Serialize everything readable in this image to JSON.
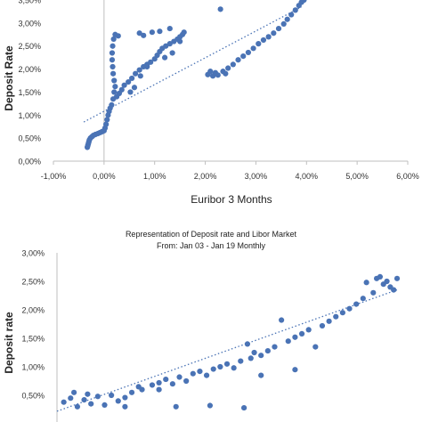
{
  "chart_data": [
    {
      "type": "scatter",
      "title": "",
      "xlabel": "Euribor 3 Months",
      "ylabel": "Deposit Rate",
      "xlim": [
        -1.0,
        6.0
      ],
      "ylim": [
        0.0,
        3.5
      ],
      "x_ticks": [
        -1,
        0,
        1,
        2,
        3,
        4,
        5,
        6
      ],
      "x_tick_labels": [
        "-1,00%",
        "0,00%",
        "1,00%",
        "2,00%",
        "3,00%",
        "4,00%",
        "5,00%",
        "6,00%"
      ],
      "y_ticks": [
        0,
        0.5,
        1,
        1.5,
        2,
        2.5,
        3,
        3.5
      ],
      "y_tick_labels": [
        "0,00%",
        "0,50%",
        "1,00%",
        "1,50%",
        "2,00%",
        "2,50%",
        "3,00%",
        "3,50%"
      ],
      "grid": false,
      "trendline": {
        "style": "dotted",
        "x": [
          -0.4,
          3.9
        ],
        "y": [
          0.85,
          3.35
        ]
      },
      "points": [
        {
          "x": -0.33,
          "y": 0.3
        },
        {
          "x": -0.32,
          "y": 0.34
        },
        {
          "x": -0.31,
          "y": 0.38
        },
        {
          "x": -0.3,
          "y": 0.42
        },
        {
          "x": -0.29,
          "y": 0.46
        },
        {
          "x": -0.27,
          "y": 0.5
        },
        {
          "x": -0.24,
          "y": 0.53
        },
        {
          "x": -0.21,
          "y": 0.56
        },
        {
          "x": -0.17,
          "y": 0.58
        },
        {
          "x": -0.12,
          "y": 0.6
        },
        {
          "x": -0.08,
          "y": 0.62
        },
        {
          "x": -0.04,
          "y": 0.64
        },
        {
          "x": 0.0,
          "y": 0.66
        },
        {
          "x": 0.02,
          "y": 0.72
        },
        {
          "x": 0.04,
          "y": 0.8
        },
        {
          "x": 0.06,
          "y": 0.9
        },
        {
          "x": 0.08,
          "y": 1.0
        },
        {
          "x": 0.1,
          "y": 1.08
        },
        {
          "x": 0.12,
          "y": 1.15
        },
        {
          "x": 0.15,
          "y": 1.22
        },
        {
          "x": 0.18,
          "y": 1.35
        },
        {
          "x": 0.2,
          "y": 1.5
        },
        {
          "x": 0.22,
          "y": 1.62
        },
        {
          "x": 0.2,
          "y": 1.75
        },
        {
          "x": 0.18,
          "y": 1.9
        },
        {
          "x": 0.17,
          "y": 2.05
        },
        {
          "x": 0.16,
          "y": 2.2
        },
        {
          "x": 0.16,
          "y": 2.35
        },
        {
          "x": 0.17,
          "y": 2.5
        },
        {
          "x": 0.19,
          "y": 2.65
        },
        {
          "x": 0.22,
          "y": 2.75
        },
        {
          "x": 0.28,
          "y": 2.72
        },
        {
          "x": 0.25,
          "y": 1.4
        },
        {
          "x": 0.3,
          "y": 1.47
        },
        {
          "x": 0.35,
          "y": 1.55
        },
        {
          "x": 0.4,
          "y": 1.65
        },
        {
          "x": 0.48,
          "y": 1.72
        },
        {
          "x": 0.55,
          "y": 1.8
        },
        {
          "x": 0.62,
          "y": 1.9
        },
        {
          "x": 0.7,
          "y": 1.98
        },
        {
          "x": 0.78,
          "y": 2.05
        },
        {
          "x": 0.85,
          "y": 2.1
        },
        {
          "x": 0.92,
          "y": 2.15
        },
        {
          "x": 1.0,
          "y": 2.22
        },
        {
          "x": 1.05,
          "y": 2.3
        },
        {
          "x": 1.1,
          "y": 2.38
        },
        {
          "x": 1.15,
          "y": 2.45
        },
        {
          "x": 1.22,
          "y": 2.5
        },
        {
          "x": 1.3,
          "y": 2.55
        },
        {
          "x": 1.38,
          "y": 2.6
        },
        {
          "x": 1.45,
          "y": 2.65
        },
        {
          "x": 1.5,
          "y": 2.7
        },
        {
          "x": 1.55,
          "y": 2.75
        },
        {
          "x": 1.58,
          "y": 2.8
        },
        {
          "x": 1.5,
          "y": 2.6
        },
        {
          "x": 0.7,
          "y": 2.78
        },
        {
          "x": 0.78,
          "y": 2.73
        },
        {
          "x": 0.95,
          "y": 2.8
        },
        {
          "x": 1.1,
          "y": 2.82
        },
        {
          "x": 1.3,
          "y": 2.88
        },
        {
          "x": 0.85,
          "y": 2.05
        },
        {
          "x": 0.72,
          "y": 1.85
        },
        {
          "x": 0.6,
          "y": 1.6
        },
        {
          "x": 0.52,
          "y": 1.5
        },
        {
          "x": 1.2,
          "y": 2.25
        },
        {
          "x": 1.35,
          "y": 2.35
        },
        {
          "x": 2.05,
          "y": 1.88
        },
        {
          "x": 2.15,
          "y": 1.85
        },
        {
          "x": 2.25,
          "y": 1.87
        },
        {
          "x": 2.35,
          "y": 1.95
        },
        {
          "x": 2.45,
          "y": 2.02
        },
        {
          "x": 2.55,
          "y": 2.1
        },
        {
          "x": 2.65,
          "y": 2.2
        },
        {
          "x": 2.75,
          "y": 2.28
        },
        {
          "x": 2.85,
          "y": 2.36
        },
        {
          "x": 2.95,
          "y": 2.45
        },
        {
          "x": 3.05,
          "y": 2.55
        },
        {
          "x": 3.15,
          "y": 2.63
        },
        {
          "x": 3.25,
          "y": 2.7
        },
        {
          "x": 3.35,
          "y": 2.78
        },
        {
          "x": 3.45,
          "y": 2.88
        },
        {
          "x": 3.55,
          "y": 2.98
        },
        {
          "x": 3.62,
          "y": 3.08
        },
        {
          "x": 3.7,
          "y": 3.18
        },
        {
          "x": 3.78,
          "y": 3.28
        },
        {
          "x": 3.85,
          "y": 3.38
        },
        {
          "x": 3.9,
          "y": 3.45
        },
        {
          "x": 3.95,
          "y": 3.5
        },
        {
          "x": 2.3,
          "y": 3.3
        },
        {
          "x": 2.2,
          "y": 1.92
        },
        {
          "x": 2.1,
          "y": 1.95
        },
        {
          "x": 2.4,
          "y": 1.9
        }
      ]
    },
    {
      "type": "scatter",
      "title": "Representation of Deposit rate and Libor Market",
      "subtitle": "From: Jan 03 - Jan 19 Monthly",
      "xlabel": "",
      "ylabel": "Deposit rate",
      "ylim": [
        0.0,
        3.0
      ],
      "y_ticks": [
        0.5,
        1,
        1.5,
        2,
        2.5,
        3
      ],
      "y_tick_labels": [
        "0,50%",
        "1,00%",
        "1,50%",
        "2,00%",
        "2,50%",
        "3,00%"
      ],
      "grid": false,
      "trendline": {
        "style": "dotted",
        "x": [
          0.0,
          1.0
        ],
        "y": [
          0.22,
          2.35
        ]
      },
      "points": [
        {
          "x": 0.02,
          "y": 0.38
        },
        {
          "x": 0.04,
          "y": 0.45
        },
        {
          "x": 0.06,
          "y": 0.3
        },
        {
          "x": 0.08,
          "y": 0.42
        },
        {
          "x": 0.1,
          "y": 0.35
        },
        {
          "x": 0.12,
          "y": 0.48
        },
        {
          "x": 0.14,
          "y": 0.33
        },
        {
          "x": 0.16,
          "y": 0.5
        },
        {
          "x": 0.18,
          "y": 0.4
        },
        {
          "x": 0.2,
          "y": 0.46
        },
        {
          "x": 0.22,
          "y": 0.55
        },
        {
          "x": 0.25,
          "y": 0.6
        },
        {
          "x": 0.28,
          "y": 0.68
        },
        {
          "x": 0.3,
          "y": 0.72
        },
        {
          "x": 0.32,
          "y": 0.78
        },
        {
          "x": 0.34,
          "y": 0.7
        },
        {
          "x": 0.36,
          "y": 0.82
        },
        {
          "x": 0.38,
          "y": 0.75
        },
        {
          "x": 0.4,
          "y": 0.88
        },
        {
          "x": 0.42,
          "y": 0.92
        },
        {
          "x": 0.44,
          "y": 0.85
        },
        {
          "x": 0.46,
          "y": 0.96
        },
        {
          "x": 0.48,
          "y": 1.0
        },
        {
          "x": 0.5,
          "y": 1.05
        },
        {
          "x": 0.52,
          "y": 0.98
        },
        {
          "x": 0.54,
          "y": 1.1
        },
        {
          "x": 0.56,
          "y": 1.4
        },
        {
          "x": 0.57,
          "y": 1.15
        },
        {
          "x": 0.58,
          "y": 1.25
        },
        {
          "x": 0.6,
          "y": 1.2
        },
        {
          "x": 0.62,
          "y": 1.28
        },
        {
          "x": 0.64,
          "y": 1.35
        },
        {
          "x": 0.66,
          "y": 1.82
        },
        {
          "x": 0.68,
          "y": 1.45
        },
        {
          "x": 0.7,
          "y": 1.52
        },
        {
          "x": 0.72,
          "y": 1.58
        },
        {
          "x": 0.74,
          "y": 1.65
        },
        {
          "x": 0.76,
          "y": 1.35
        },
        {
          "x": 0.78,
          "y": 1.72
        },
        {
          "x": 0.8,
          "y": 1.8
        },
        {
          "x": 0.82,
          "y": 1.88
        },
        {
          "x": 0.84,
          "y": 1.95
        },
        {
          "x": 0.86,
          "y": 2.02
        },
        {
          "x": 0.88,
          "y": 2.1
        },
        {
          "x": 0.9,
          "y": 2.2
        },
        {
          "x": 0.91,
          "y": 2.48
        },
        {
          "x": 0.93,
          "y": 2.3
        },
        {
          "x": 0.94,
          "y": 2.55
        },
        {
          "x": 0.95,
          "y": 2.58
        },
        {
          "x": 0.96,
          "y": 2.45
        },
        {
          "x": 0.97,
          "y": 2.5
        },
        {
          "x": 0.98,
          "y": 2.4
        },
        {
          "x": 0.99,
          "y": 2.35
        },
        {
          "x": 1.0,
          "y": 2.55
        },
        {
          "x": 0.2,
          "y": 0.3
        },
        {
          "x": 0.35,
          "y": 0.3
        },
        {
          "x": 0.45,
          "y": 0.32
        },
        {
          "x": 0.55,
          "y": 0.28
        },
        {
          "x": 0.3,
          "y": 0.6
        },
        {
          "x": 0.24,
          "y": 0.65
        },
        {
          "x": 0.05,
          "y": 0.55
        },
        {
          "x": 0.09,
          "y": 0.52
        },
        {
          "x": 0.6,
          "y": 0.85
        },
        {
          "x": 0.7,
          "y": 0.95
        }
      ]
    }
  ]
}
